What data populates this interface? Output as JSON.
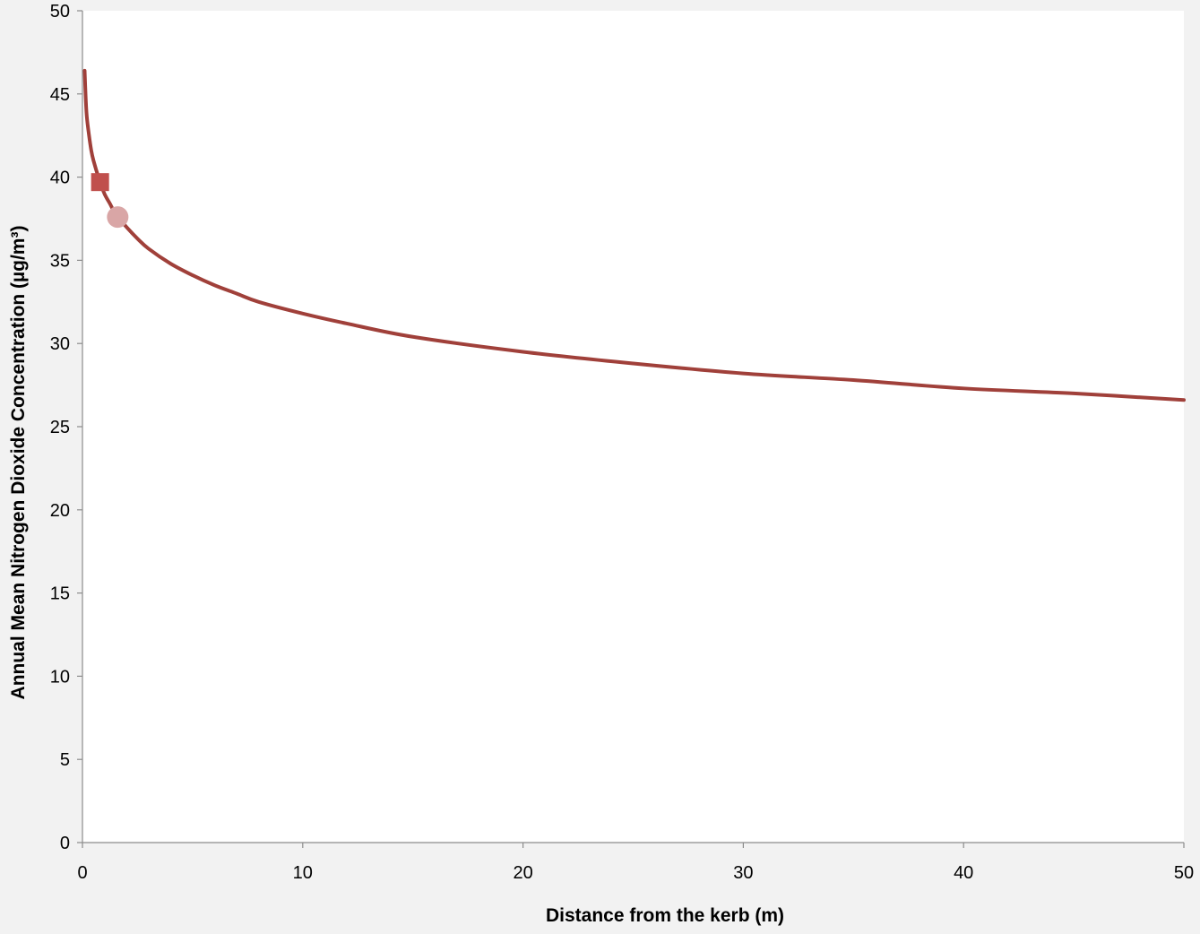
{
  "chart_data": {
    "type": "line",
    "xlabel": "Distance from the kerb (m)",
    "ylabel": "Annual Mean Nitrogen Dioxide Concentration (µg/m³)",
    "xlim": [
      0,
      50
    ],
    "ylim": [
      0,
      50
    ],
    "x_ticks": [
      0,
      10,
      20,
      30,
      40,
      50
    ],
    "y_ticks": [
      0,
      5,
      10,
      15,
      20,
      25,
      30,
      35,
      40,
      45,
      50
    ],
    "grid": false,
    "series": [
      {
        "type": "line",
        "color": "#a0403a",
        "points": [
          [
            0.1,
            46.4
          ],
          [
            0.15,
            44.7
          ],
          [
            0.2,
            43.6
          ],
          [
            0.3,
            42.5
          ],
          [
            0.4,
            41.6
          ],
          [
            0.5,
            41.0
          ],
          [
            0.75,
            39.9
          ],
          [
            1.0,
            39.0
          ],
          [
            1.25,
            38.4
          ],
          [
            1.5,
            37.8
          ],
          [
            2.0,
            37.0
          ],
          [
            2.5,
            36.3
          ],
          [
            3.0,
            35.7
          ],
          [
            4.0,
            34.8
          ],
          [
            5.0,
            34.1
          ],
          [
            6.0,
            33.5
          ],
          [
            7.0,
            33.0
          ],
          [
            8.0,
            32.5
          ],
          [
            10.0,
            31.8
          ],
          [
            12.0,
            31.2
          ],
          [
            15.0,
            30.4
          ],
          [
            20.0,
            29.5
          ],
          [
            25.0,
            28.8
          ],
          [
            30.0,
            28.2
          ],
          [
            35.0,
            27.8
          ],
          [
            40.0,
            27.3
          ],
          [
            45.0,
            27.0
          ],
          [
            50.0,
            26.6
          ]
        ]
      },
      {
        "type": "marker",
        "marker": "square",
        "color": "#c0504d",
        "points": [
          [
            0.8,
            39.7
          ]
        ]
      },
      {
        "type": "marker",
        "marker": "circle",
        "color": "#d9a6a6",
        "points": [
          [
            1.6,
            37.6
          ]
        ]
      }
    ]
  }
}
